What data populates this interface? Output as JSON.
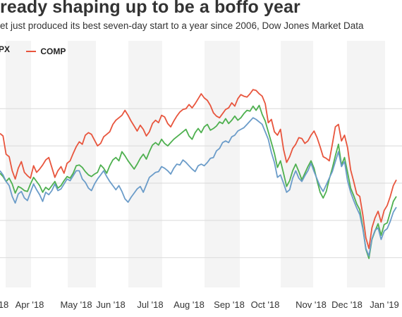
{
  "header": {
    "title": "ready shaping up to be a boffo year",
    "subtitle": "et just produced its best seven-day start to a year since 2006, Dow Jones Market Data"
  },
  "legend": {
    "items": [
      {
        "label": "PX",
        "color": "#6b9cc9"
      },
      {
        "label": "COMP",
        "color": "#e8553d"
      }
    ]
  },
  "chart_data": {
    "type": "line",
    "grid": true,
    "legend_position": "top-left",
    "x_tick_labels": [
      "18",
      "Apr '18",
      "May '18",
      "Jun '18",
      "Jul '18",
      "Aug '18",
      "Sep '18",
      "Oct '18",
      "Nov '18",
      "Dec '18",
      "Jan '19"
    ],
    "series": [
      {
        "name": "COMP",
        "color": "#e8553d",
        "values": [
          6.0,
          5.7,
          3.5,
          3.2,
          1.5,
          0.5,
          1.8,
          2.6,
          1.3,
          0.9,
          0.6,
          2.1,
          1.3,
          1.7,
          2.2,
          2.8,
          3.1,
          1.9,
          0.7,
          1.5,
          2.0,
          1.2,
          2.4,
          2.7,
          3.6,
          4.4,
          5.0,
          4.7,
          5.8,
          6.1,
          5.9,
          5.2,
          4.5,
          4.8,
          5.6,
          5.9,
          6.2,
          7.1,
          7.6,
          7.9,
          8.2,
          8.8,
          8.2,
          7.5,
          6.9,
          6.3,
          7.0,
          6.5,
          5.7,
          6.2,
          7.2,
          7.6,
          7.3,
          8.2,
          8.0,
          7.2,
          6.8,
          7.5,
          8.1,
          8.6,
          8.9,
          9.0,
          9.5,
          9.1,
          9.6,
          10.2,
          10.8,
          10.3,
          10.0,
          9.4,
          8.5,
          8.1,
          7.9,
          8.4,
          8.9,
          9.1,
          9.7,
          9.3,
          10.2,
          10.7,
          10.5,
          10.4,
          10.8,
          11.3,
          11.2,
          10.8,
          10.5,
          9.6,
          7.3,
          7.7,
          6.2,
          5.8,
          6.5,
          4.1,
          2.5,
          3.2,
          4.2,
          4.7,
          5.5,
          5.4,
          4.8,
          5.1,
          5.8,
          6.3,
          5.5,
          4.4,
          3.2,
          3.0,
          2.7,
          4.7,
          6.8,
          7.1,
          5.1,
          5.8,
          4.3,
          1.6,
          0.2,
          -1.3,
          -1.6,
          -3.8,
          -6.6,
          -7.9,
          -5.4,
          -4.2,
          -3.4,
          -4.7,
          -3.3,
          -2.7,
          -1.6,
          -0.3,
          0.4
        ]
      },
      {
        "name": "",
        "color": "#4eb04f",
        "values": [
          1.2,
          0.8,
          0.2,
          0.6,
          -0.1,
          -1.2,
          -0.4,
          -0.6,
          -0.9,
          -1.0,
          -0.1,
          0.7,
          0.2,
          -0.3,
          -1.1,
          -0.5,
          -0.8,
          -0.3,
          0.2,
          -0.6,
          -0.3,
          0.3,
          0.8,
          0.6,
          1.2,
          2.1,
          2.2,
          1.9,
          1.4,
          1.0,
          0.8,
          1.1,
          1.3,
          2.2,
          1.8,
          1.2,
          2.1,
          2.8,
          3.1,
          2.7,
          3.8,
          3.3,
          2.7,
          2.2,
          1.7,
          2.3,
          3.0,
          3.5,
          2.9,
          3.8,
          4.6,
          4.9,
          4.6,
          5.3,
          4.8,
          4.5,
          4.9,
          5.3,
          5.6,
          5.9,
          6.2,
          6.5,
          5.7,
          5.3,
          6.1,
          6.6,
          6.1,
          6.8,
          7.1,
          6.4,
          6.6,
          6.9,
          7.4,
          7.2,
          7.8,
          7.2,
          7.6,
          8.1,
          7.6,
          7.9,
          8.4,
          8.8,
          8.7,
          9.3,
          8.8,
          9.4,
          8.3,
          7.5,
          6.2,
          4.9,
          3.6,
          1.9,
          2.7,
          1.2,
          -0.4,
          0.3,
          1.5,
          2.3,
          1.4,
          0.4,
          1.2,
          2.0,
          2.7,
          1.8,
          0.3,
          -1.1,
          -1.8,
          -1.0,
          0.5,
          1.8,
          3.3,
          4.7,
          2.2,
          3.1,
          1.3,
          -0.6,
          -1.5,
          -2.5,
          -3.2,
          -5.3,
          -8.0,
          -9.1,
          -6.8,
          -5.8,
          -4.9,
          -6.3,
          -5.0,
          -4.8,
          -3.5,
          -2.2,
          -1.6
        ]
      },
      {
        "name": "PX",
        "color": "#6b9cc9",
        "values": [
          1.5,
          1.0,
          0.2,
          -0.3,
          -1.6,
          -2.4,
          -1.3,
          -1.0,
          -1.8,
          -2.1,
          -1.1,
          -0.1,
          -0.8,
          -1.4,
          -2.2,
          -1.1,
          -1.4,
          -0.9,
          -0.1,
          -0.9,
          -0.7,
          -0.1,
          0.5,
          0.3,
          0.9,
          1.5,
          1.5,
          0.5,
          0.1,
          -0.6,
          -0.9,
          -0.1,
          0.5,
          1.0,
          1.5,
          0.8,
          0.2,
          -0.3,
          -0.8,
          -0.3,
          -1.0,
          -1.9,
          -2.3,
          -1.7,
          -1.2,
          -0.7,
          -0.4,
          -1.1,
          -0.2,
          0.7,
          1.0,
          1.3,
          1.4,
          2.0,
          1.8,
          1.5,
          1.1,
          1.8,
          2.3,
          2.2,
          2.8,
          2.5,
          2.1,
          1.7,
          1.4,
          2.1,
          2.3,
          2.1,
          2.5,
          3.0,
          3.1,
          3.9,
          4.2,
          4.9,
          5.1,
          4.9,
          5.6,
          5.8,
          6.3,
          6.5,
          6.7,
          7.1,
          7.5,
          7.9,
          7.7,
          7.4,
          7.1,
          6.2,
          5.3,
          3.7,
          2.5,
          0.7,
          1.0,
          0.0,
          -1.1,
          -0.8,
          0.6,
          1.5,
          0.6,
          0.2,
          0.9,
          1.5,
          2.4,
          1.4,
          0.5,
          -0.4,
          -1.0,
          -0.2,
          0.6,
          1.4,
          2.6,
          3.8,
          2.0,
          2.6,
          0.3,
          -1.1,
          -2.1,
          -3.0,
          -3.8,
          -5.5,
          -7.9,
          -8.8,
          -6.7,
          -5.7,
          -5.4,
          -6.8,
          -5.8,
          -5.5,
          -4.6,
          -3.5,
          -2.9
        ]
      }
    ]
  }
}
